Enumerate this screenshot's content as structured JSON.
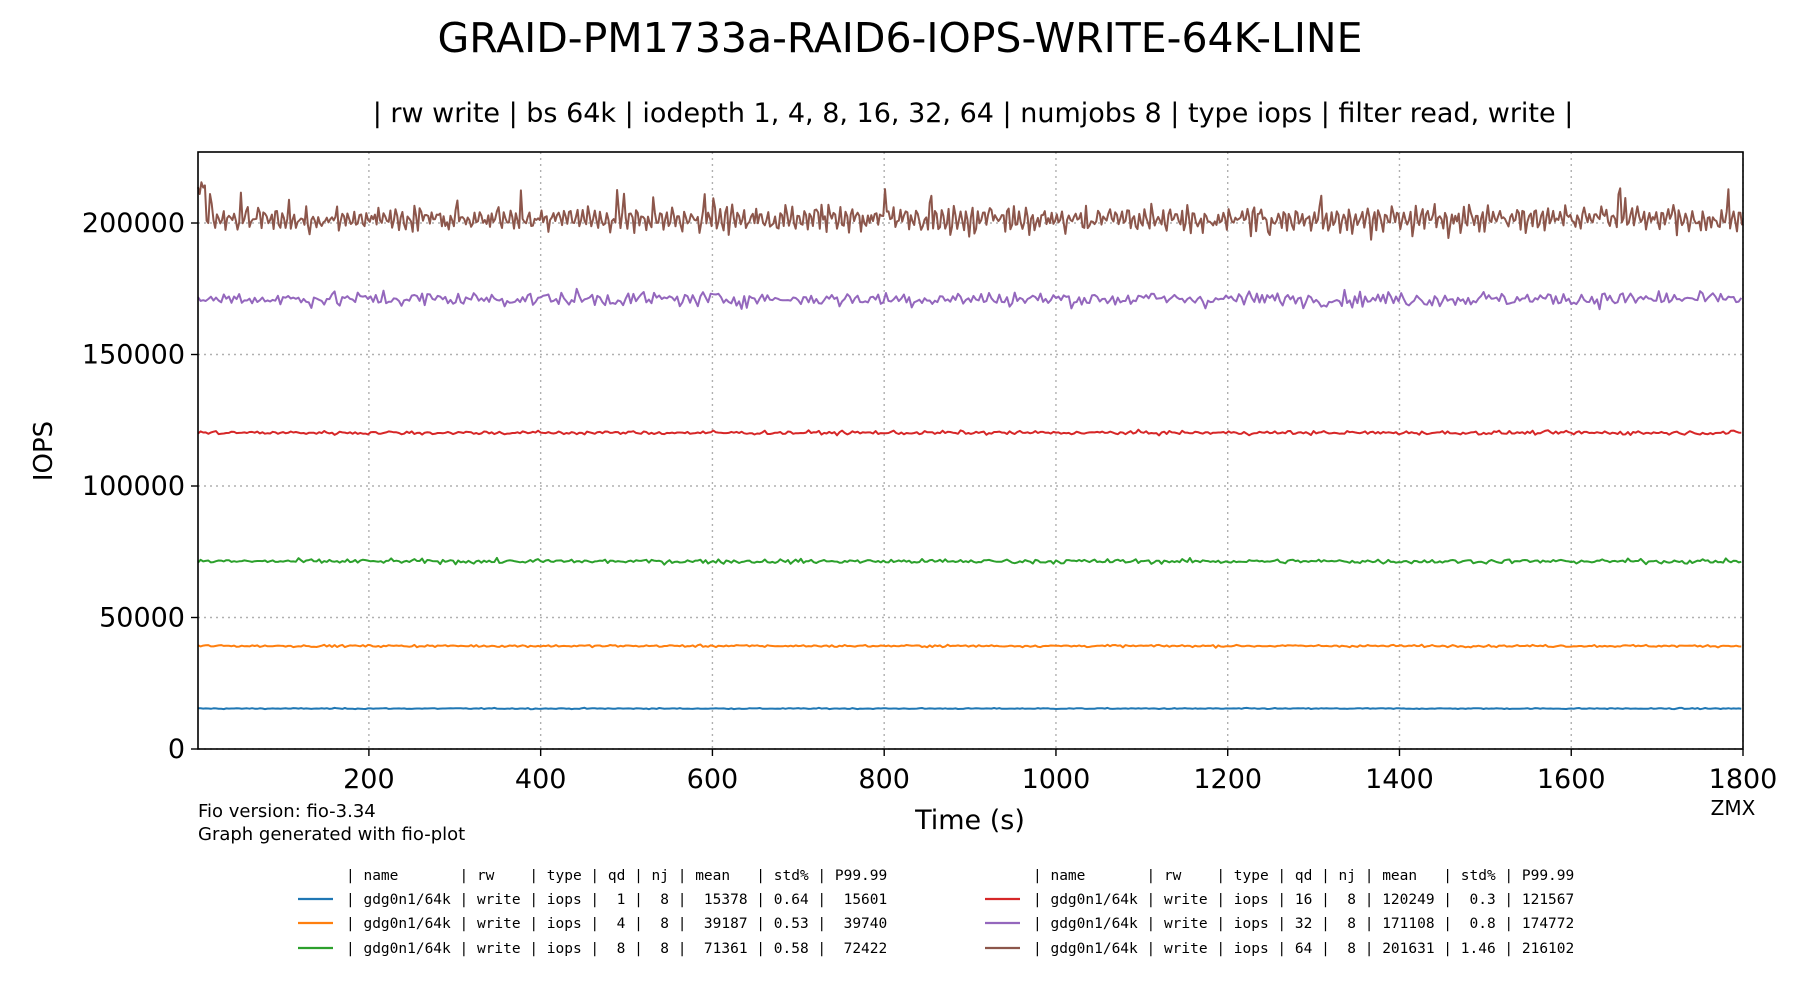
{
  "chart_data": {
    "type": "line",
    "title": "GRAID-PM1733a-RAID6-IOPS-WRITE-64K-LINE",
    "subtitle": "| rw write | bs 64k | iodepth 1, 4, 8, 16, 32, 64 | numjobs 8 | type iops | filter read, write |",
    "xlabel": "Time (s)",
    "ylabel": "IOPS",
    "xlim": [
      1,
      1800
    ],
    "ylim": [
      0,
      227000
    ],
    "xticks": [
      200,
      400,
      600,
      800,
      1000,
      1200,
      1400,
      1600,
      1800
    ],
    "yticks": [
      0,
      50000,
      100000,
      150000,
      200000
    ],
    "grid": true,
    "legend_placement": "bottom",
    "legend_header": "| name       | rw    | type | qd | nj | mean   | std% | P99.99",
    "series": [
      {
        "qd": 1,
        "mean": 15378,
        "std_pct": 0.64,
        "p9999": 15601,
        "color": "#1f77b4",
        "legend": "| gdg0n1/64k | write | iops |  1 |  8 |  15378 | 0.64 |  15601"
      },
      {
        "qd": 4,
        "mean": 39187,
        "std_pct": 0.53,
        "p9999": 39740,
        "color": "#ff7f0e",
        "legend": "| gdg0n1/64k | write | iops |  4 |  8 |  39187 | 0.53 |  39740"
      },
      {
        "qd": 8,
        "mean": 71361,
        "std_pct": 0.58,
        "p9999": 72422,
        "color": "#2ca02c",
        "legend": "| gdg0n1/64k | write | iops |  8 |  8 |  71361 | 0.58 |  72422"
      },
      {
        "qd": 16,
        "mean": 120249,
        "std_pct": 0.3,
        "p9999": 121567,
        "color": "#d62728",
        "legend": "| gdg0n1/64k | write | iops | 16 |  8 | 120249 |  0.3 | 121567"
      },
      {
        "qd": 32,
        "mean": 171108,
        "std_pct": 0.8,
        "p9999": 174772,
        "color": "#9467bd",
        "legend": "| gdg0n1/64k | write | iops | 32 |  8 | 171108 |  0.8 | 174772"
      },
      {
        "qd": 64,
        "mean": 201631,
        "std_pct": 1.46,
        "p9999": 216102,
        "color": "#8c564b",
        "legend": "| gdg0n1/64k | write | iops | 64 |  8 | 201631 | 1.46 | 216102"
      }
    ]
  },
  "footer": {
    "fio_version": "Fio version: fio-3.34",
    "generator": "Graph generated with fio-plot",
    "author": "ZMX"
  }
}
